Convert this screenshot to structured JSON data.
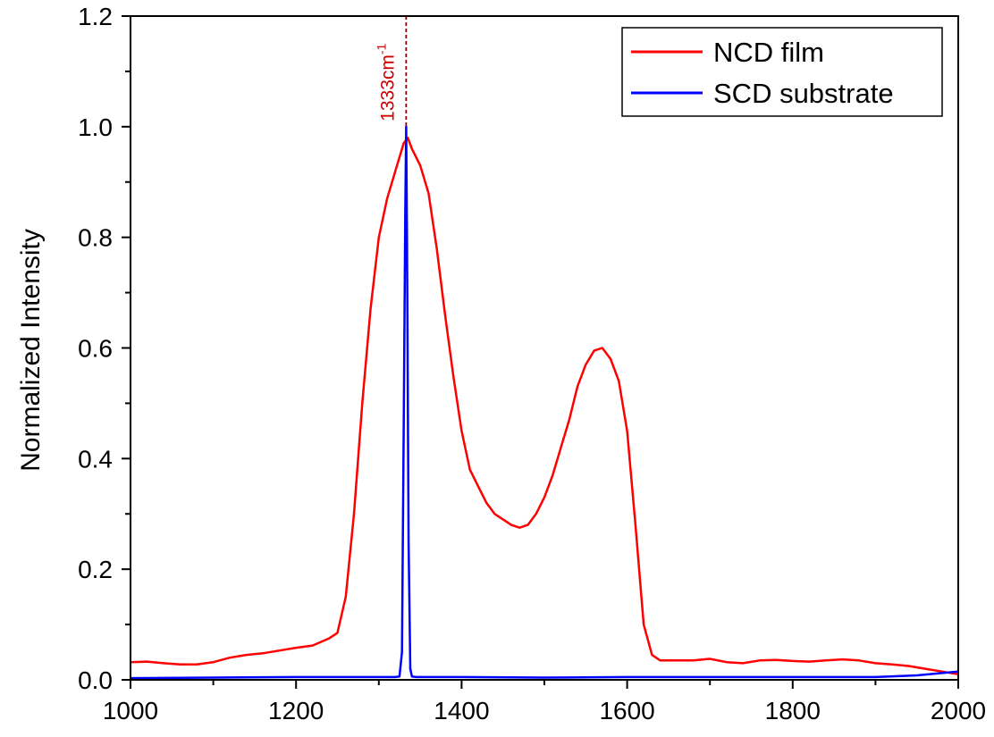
{
  "chart_data": {
    "type": "line",
    "title": "",
    "xlabel": "",
    "ylabel": "Normalized Intensity",
    "xlim": [
      1000,
      2000
    ],
    "ylim": [
      0.0,
      1.2
    ],
    "x_ticks": [
      1000,
      1200,
      1400,
      1600,
      1800,
      2000
    ],
    "x_tick_labels": [
      "1000",
      "1200",
      "1400",
      "1600",
      "1800",
      "2000"
    ],
    "y_ticks": [
      0.0,
      0.2,
      0.4,
      0.6,
      0.8,
      1.0,
      1.2
    ],
    "y_tick_labels": [
      "0.0",
      "0.2",
      "0.4",
      "0.6",
      "0.8",
      "1.0",
      "1.2"
    ],
    "grid": false,
    "legend_position": "top-right",
    "series": [
      {
        "name": "NCD film",
        "color": "#ff0000",
        "x": [
          1000,
          1020,
          1040,
          1060,
          1080,
          1100,
          1120,
          1140,
          1160,
          1180,
          1200,
          1220,
          1240,
          1250,
          1260,
          1270,
          1280,
          1290,
          1300,
          1310,
          1320,
          1330,
          1335,
          1340,
          1350,
          1360,
          1370,
          1380,
          1390,
          1400,
          1410,
          1420,
          1430,
          1440,
          1450,
          1460,
          1470,
          1480,
          1490,
          1500,
          1510,
          1520,
          1530,
          1540,
          1550,
          1560,
          1570,
          1580,
          1590,
          1600,
          1610,
          1620,
          1630,
          1640,
          1660,
          1680,
          1700,
          1720,
          1740,
          1760,
          1780,
          1800,
          1820,
          1840,
          1860,
          1880,
          1900,
          1920,
          1940,
          1960,
          1980,
          2000
        ],
        "y": [
          0.032,
          0.033,
          0.03,
          0.028,
          0.028,
          0.032,
          0.04,
          0.045,
          0.048,
          0.053,
          0.058,
          0.062,
          0.075,
          0.085,
          0.15,
          0.3,
          0.5,
          0.67,
          0.8,
          0.87,
          0.92,
          0.97,
          0.98,
          0.96,
          0.93,
          0.88,
          0.78,
          0.66,
          0.55,
          0.45,
          0.38,
          0.35,
          0.32,
          0.3,
          0.29,
          0.28,
          0.275,
          0.28,
          0.3,
          0.33,
          0.37,
          0.42,
          0.47,
          0.53,
          0.57,
          0.595,
          0.6,
          0.58,
          0.54,
          0.45,
          0.28,
          0.1,
          0.045,
          0.035,
          0.035,
          0.035,
          0.038,
          0.032,
          0.03,
          0.035,
          0.036,
          0.034,
          0.033,
          0.035,
          0.037,
          0.035,
          0.03,
          0.028,
          0.025,
          0.02,
          0.015,
          0.01
        ]
      },
      {
        "name": "SCD substrate",
        "color": "#0000ff",
        "x": [
          1000,
          1100,
          1200,
          1300,
          1320,
          1325,
          1328,
          1330,
          1332,
          1333,
          1334,
          1336,
          1338,
          1340,
          1345,
          1360,
          1400,
          1500,
          1600,
          1700,
          1800,
          1900,
          1950,
          2000
        ],
        "y": [
          0.003,
          0.004,
          0.005,
          0.005,
          0.005,
          0.006,
          0.05,
          0.45,
          0.85,
          1.0,
          0.8,
          0.25,
          0.02,
          0.006,
          0.005,
          0.005,
          0.005,
          0.004,
          0.005,
          0.005,
          0.005,
          0.005,
          0.008,
          0.015
        ]
      }
    ],
    "annotations": [
      {
        "text": "1333cm",
        "superscript": "-1",
        "x": 1333,
        "color": "#cc0000"
      }
    ]
  }
}
